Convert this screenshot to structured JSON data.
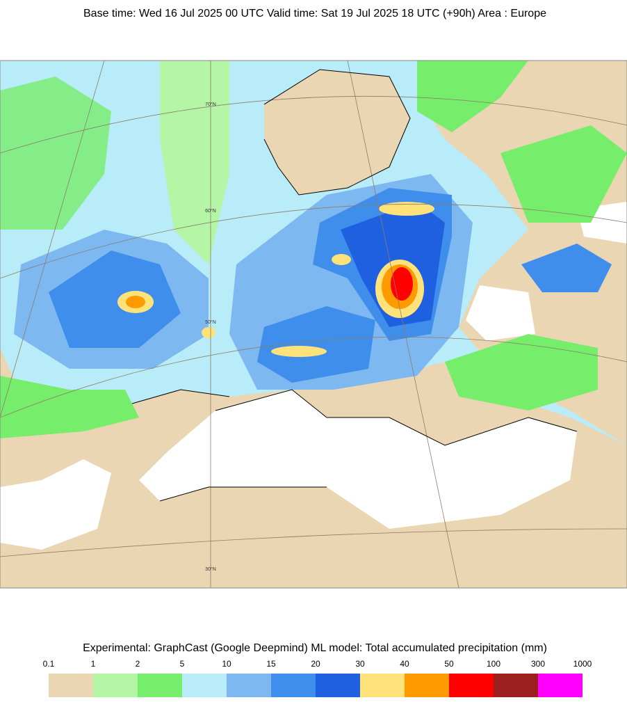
{
  "header": {
    "title": "Base time: Wed 16 Jul 2025 00 UTC Valid time: Sat 19 Jul 2025 18 UTC (+90h) Area : Europe"
  },
  "map": {
    "latitude_labels": [
      "70°N",
      "60°N",
      "50°N",
      "30°N"
    ]
  },
  "footer": {
    "title": "Experimental: GraphCast (Google Deepmind) ML model: Total accumulated precipitation (mm)"
  },
  "colorbar": {
    "levels": [
      0.1,
      1,
      2,
      5,
      10,
      15,
      20,
      30,
      40,
      50,
      100,
      300,
      1000
    ],
    "colors": [
      "#ead6b2",
      "#b4f5a6",
      "#77ed6c",
      "#b8ecf8",
      "#7db8f1",
      "#3f8eec",
      "#1e60e0",
      "#ffe27a",
      "#ff9b00",
      "#ff0000",
      "#9c1f1f",
      "#ff00ff"
    ]
  }
}
